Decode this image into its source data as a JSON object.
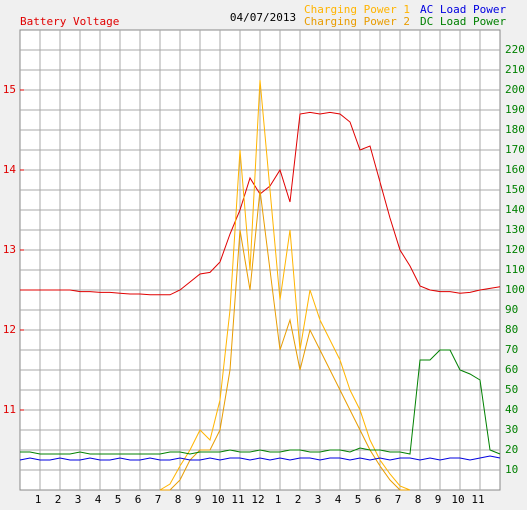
{
  "chart_data": {
    "type": "line",
    "title": "04/07/2013",
    "x": [
      0,
      0.5,
      1,
      1.5,
      2,
      2.5,
      3,
      3.5,
      4,
      4.5,
      5,
      5.5,
      6,
      6.5,
      7,
      7.5,
      8,
      8.5,
      9,
      9.5,
      10,
      10.5,
      11,
      11.5,
      12,
      12.5,
      13,
      13.5,
      14,
      14.5,
      15,
      15.5,
      16,
      16.5,
      17,
      17.5,
      18,
      18.5,
      19,
      19.5,
      20,
      20.5,
      21,
      21.5,
      22,
      22.5,
      23,
      23.5,
      24
    ],
    "xlim": [
      0,
      24
    ],
    "xticks": [
      {
        "value": 1,
        "label": "1"
      },
      {
        "value": 2,
        "label": "2"
      },
      {
        "value": 3,
        "label": "3"
      },
      {
        "value": 4,
        "label": "4"
      },
      {
        "value": 5,
        "label": "5"
      },
      {
        "value": 6,
        "label": "6"
      },
      {
        "value": 7,
        "label": "7"
      },
      {
        "value": 8,
        "label": "8"
      },
      {
        "value": 9,
        "label": "9"
      },
      {
        "value": 10,
        "label": "10"
      },
      {
        "value": 11,
        "label": "11"
      },
      {
        "value": 12,
        "label": "12"
      },
      {
        "value": 13,
        "label": "1"
      },
      {
        "value": 14,
        "label": "2"
      },
      {
        "value": 15,
        "label": "3"
      },
      {
        "value": 16,
        "label": "4"
      },
      {
        "value": 17,
        "label": "5"
      },
      {
        "value": 18,
        "label": "6"
      },
      {
        "value": 19,
        "label": "7"
      },
      {
        "value": 20,
        "label": "8"
      },
      {
        "value": 21,
        "label": "9"
      },
      {
        "value": 22,
        "label": "10"
      },
      {
        "value": 23,
        "label": "11"
      }
    ],
    "ylim": [
      10,
      15.75
    ],
    "yticks": [
      11,
      12,
      13,
      14,
      15
    ],
    "ycolor": "#e00000",
    "y2lim": [
      0,
      230
    ],
    "y2ticks": [
      10,
      20,
      30,
      40,
      50,
      60,
      70,
      80,
      90,
      100,
      110,
      120,
      130,
      140,
      150,
      160,
      170,
      180,
      190,
      200,
      210,
      220
    ],
    "y2color": "#008000",
    "grid": true,
    "series": [
      {
        "name": "Battery Voltage",
        "color": "#e00000",
        "axis": "y",
        "values": [
          12.5,
          12.5,
          12.5,
          12.5,
          12.5,
          12.5,
          12.48,
          12.48,
          12.47,
          12.47,
          12.46,
          12.45,
          12.45,
          12.44,
          12.44,
          12.44,
          12.5,
          12.6,
          12.7,
          12.72,
          12.85,
          13.2,
          13.5,
          13.9,
          13.7,
          13.8,
          14.0,
          13.6,
          14.7,
          14.72,
          14.7,
          14.72,
          14.7,
          14.6,
          14.25,
          14.3,
          13.85,
          13.4,
          13.0,
          12.8,
          12.55,
          12.5,
          12.48,
          12.48,
          12.46,
          12.47,
          12.5,
          12.52,
          12.54
        ]
      },
      {
        "name": "Charging Power 1",
        "color": "#ffb400",
        "axis": "y2",
        "values": [
          null,
          null,
          null,
          null,
          null,
          null,
          null,
          null,
          null,
          null,
          null,
          null,
          null,
          null,
          0,
          3,
          12,
          20,
          30,
          25,
          45,
          90,
          170,
          110,
          205,
          150,
          95,
          130,
          70,
          100,
          85,
          75,
          65,
          50,
          40,
          25,
          15,
          8,
          2,
          0,
          null,
          null,
          null,
          null,
          null,
          null,
          null,
          null,
          null
        ]
      },
      {
        "name": "Charging Power 2",
        "color": "#e89c00",
        "axis": "y2",
        "values": [
          null,
          null,
          null,
          null,
          null,
          null,
          null,
          null,
          null,
          null,
          null,
          null,
          null,
          null,
          0,
          0,
          5,
          15,
          20,
          20,
          30,
          60,
          130,
          100,
          150,
          110,
          70,
          85,
          60,
          80,
          70,
          60,
          50,
          40,
          30,
          20,
          12,
          5,
          0,
          0,
          null,
          null,
          null,
          null,
          null,
          null,
          null,
          null,
          null
        ]
      },
      {
        "name": "AC Load Power",
        "color": "#0000e0",
        "axis": "y2",
        "values": [
          15,
          16,
          15,
          15,
          16,
          15,
          15,
          16,
          15,
          15,
          16,
          15,
          15,
          16,
          15,
          15,
          16,
          15,
          15,
          16,
          15,
          16,
          16,
          15,
          16,
          15,
          16,
          15,
          16,
          16,
          15,
          16,
          16,
          15,
          16,
          15,
          16,
          15,
          16,
          16,
          15,
          16,
          15,
          16,
          16,
          15,
          16,
          17,
          16
        ]
      },
      {
        "name": "DC Load Power",
        "color": "#008000",
        "axis": "y2",
        "values": [
          19,
          19,
          18,
          18,
          18,
          18,
          19,
          18,
          18,
          18,
          18,
          18,
          18,
          18,
          18,
          19,
          19,
          18,
          19,
          19,
          19,
          20,
          19,
          19,
          20,
          19,
          19,
          20,
          20,
          19,
          19,
          20,
          20,
          19,
          21,
          20,
          20,
          19,
          19,
          18,
          65,
          65,
          70,
          70,
          60,
          58,
          55,
          20,
          18
        ]
      }
    ]
  }
}
